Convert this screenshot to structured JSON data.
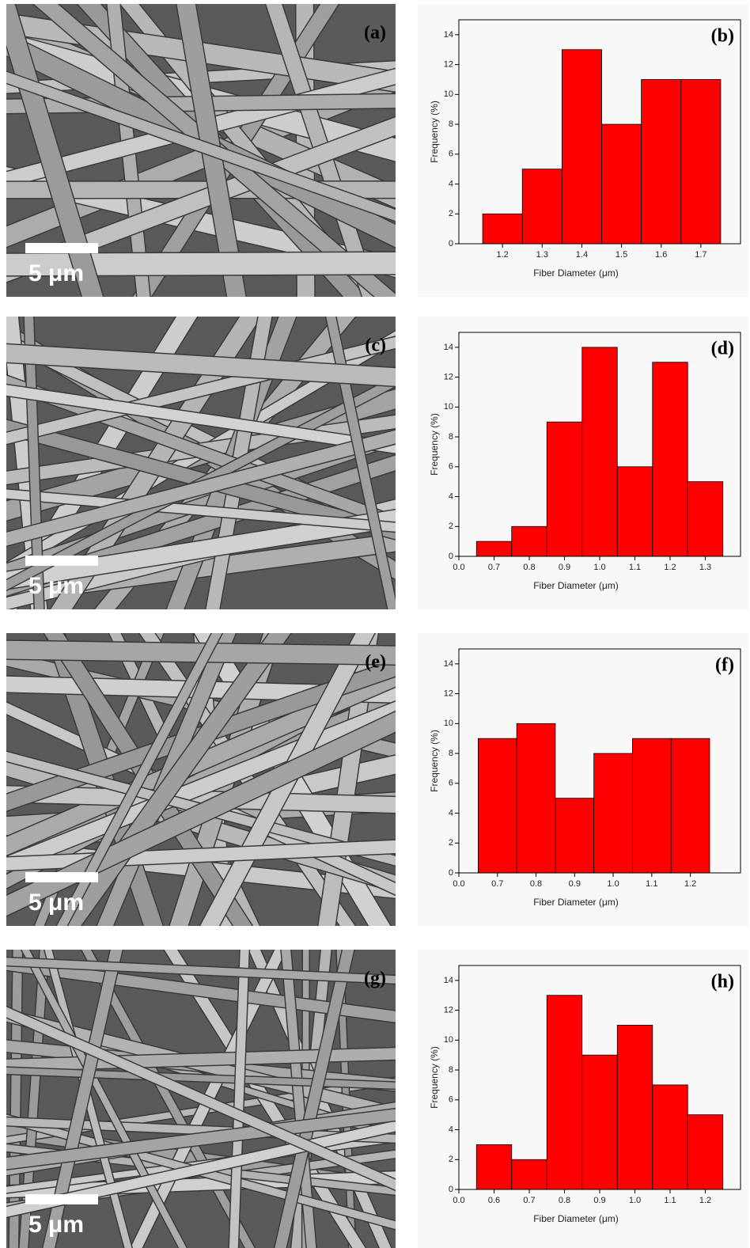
{
  "images": [
    {
      "label": "(a)",
      "scale_bar": "5 μm"
    },
    {
      "label": "(c)",
      "scale_bar": "5 μm"
    },
    {
      "label": "(e)",
      "scale_bar": "5 μm"
    },
    {
      "label": "(g)",
      "scale_bar": "5 μm"
    }
  ],
  "chart_data": [
    {
      "type": "histogram",
      "panel_label": "(b)",
      "x_label": "Fiber Diameter (μm)",
      "y_label": "Frequency (%)",
      "color": "#ff0000",
      "bins": [
        1.15,
        1.25,
        1.35,
        1.45,
        1.55,
        1.65,
        1.75
      ],
      "counts": [
        2,
        5,
        13,
        8,
        11,
        11
      ],
      "xlim": [
        1.09,
        1.8
      ],
      "xticks": [
        1.2,
        1.3,
        1.4,
        1.5,
        1.6,
        1.7
      ],
      "ylim": [
        0,
        15
      ],
      "yticks": [
        0,
        2,
        4,
        6,
        8,
        10,
        12,
        14
      ]
    },
    {
      "type": "histogram",
      "panel_label": "(d)",
      "x_label": "Fiber Diameter (μm)",
      "y_label": "Frequency (%)",
      "color": "#ff0000",
      "bins": [
        0.65,
        0.75,
        0.85,
        0.95,
        1.05,
        1.15,
        1.25,
        1.35
      ],
      "counts": [
        1,
        2,
        9,
        14,
        6,
        13,
        5
      ],
      "xlim": [
        0.6,
        1.4
      ],
      "xticks": [
        {
          "value": 0,
          "label": "0.0"
        },
        0.7,
        0.8,
        0.9,
        {
          "value": 1,
          "label": "1.0"
        },
        1.1,
        1.2,
        1.3
      ],
      "ylim": [
        0,
        15
      ],
      "yticks": [
        0,
        2,
        4,
        6,
        8,
        10,
        12,
        14
      ]
    },
    {
      "type": "histogram",
      "panel_label": "(f)",
      "x_label": "Fiber Diameter (μm)",
      "y_label": "Frequency (%)",
      "color": "#ff0000",
      "bins": [
        0.65,
        0.75,
        0.85,
        0.95,
        1.05,
        1.15,
        1.25
      ],
      "counts": [
        9,
        10,
        5,
        8,
        9,
        9
      ],
      "xlim": [
        0.6,
        1.33
      ],
      "xticks": [
        {
          "value": 0,
          "label": "0.0"
        },
        0.7,
        0.8,
        0.9,
        {
          "value": 1,
          "label": "1.0"
        },
        1.1,
        1.2
      ],
      "ylim": [
        0,
        15
      ],
      "yticks": [
        0,
        2,
        4,
        6,
        8,
        10,
        12,
        14
      ]
    },
    {
      "type": "histogram",
      "panel_label": "(h)",
      "x_label": "Fiber Diameter (μm)",
      "y_label": "Frequency (%)",
      "color": "#ff0000",
      "bins": [
        0.55,
        0.65,
        0.75,
        0.85,
        0.95,
        1.05,
        1.15,
        1.25
      ],
      "counts": [
        3,
        2,
        13,
        9,
        11,
        7,
        5
      ],
      "xlim": [
        0.5,
        1.3
      ],
      "xticks": [
        {
          "value": 0,
          "label": "0.0"
        },
        0.6,
        0.7,
        0.8,
        0.9,
        {
          "value": 1,
          "label": "1.0"
        },
        1.1,
        1.2
      ],
      "ylim": [
        0,
        15
      ],
      "yticks": [
        0,
        2,
        4,
        6,
        8,
        10,
        12,
        14
      ]
    }
  ]
}
